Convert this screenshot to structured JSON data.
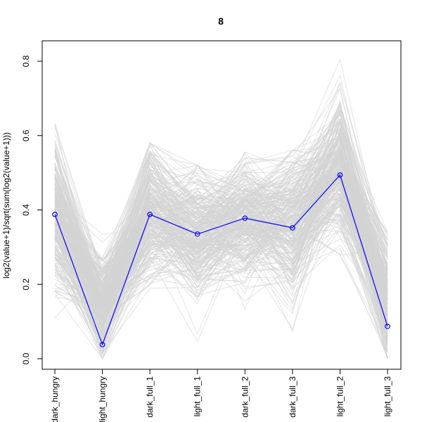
{
  "chart_data": {
    "type": "line",
    "title": "8",
    "xlabel": "",
    "ylabel": "log2(value+1)/sqrt(sum(log2(value+1)))",
    "categories": [
      "dark_hungry",
      "light_hungry",
      "dark_full_1",
      "light_full_1",
      "dark_full_2",
      "dark_full_3",
      "light_full_2",
      "light_full_3"
    ],
    "ylim": [
      0,
      0.8
    ],
    "yticks": [
      "0.0",
      "0.2",
      "0.4",
      "0.6",
      "0.8"
    ],
    "ytick_values": [
      0.0,
      0.2,
      0.4,
      0.6,
      0.8
    ],
    "grid": false,
    "series": [
      {
        "color": "#0000ff",
        "values": [
          0.388,
          0.038,
          0.388,
          0.335,
          0.378,
          0.352,
          0.494,
          0.087
        ]
      }
    ],
    "background_profiles": {
      "color": "#d3d3d3",
      "count_estimate": 300,
      "mean": [
        0.39,
        0.14,
        0.4,
        0.33,
        0.38,
        0.36,
        0.52,
        0.15
      ],
      "spread": [
        0.11,
        0.07,
        0.1,
        0.1,
        0.09,
        0.11,
        0.11,
        0.1
      ],
      "min": [
        0.11,
        0.0,
        0.16,
        0.0,
        0.11,
        0.0,
        0.28,
        0.0
      ],
      "max": [
        0.64,
        0.34,
        0.58,
        0.52,
        0.57,
        0.56,
        0.82,
        0.34
      ]
    }
  }
}
